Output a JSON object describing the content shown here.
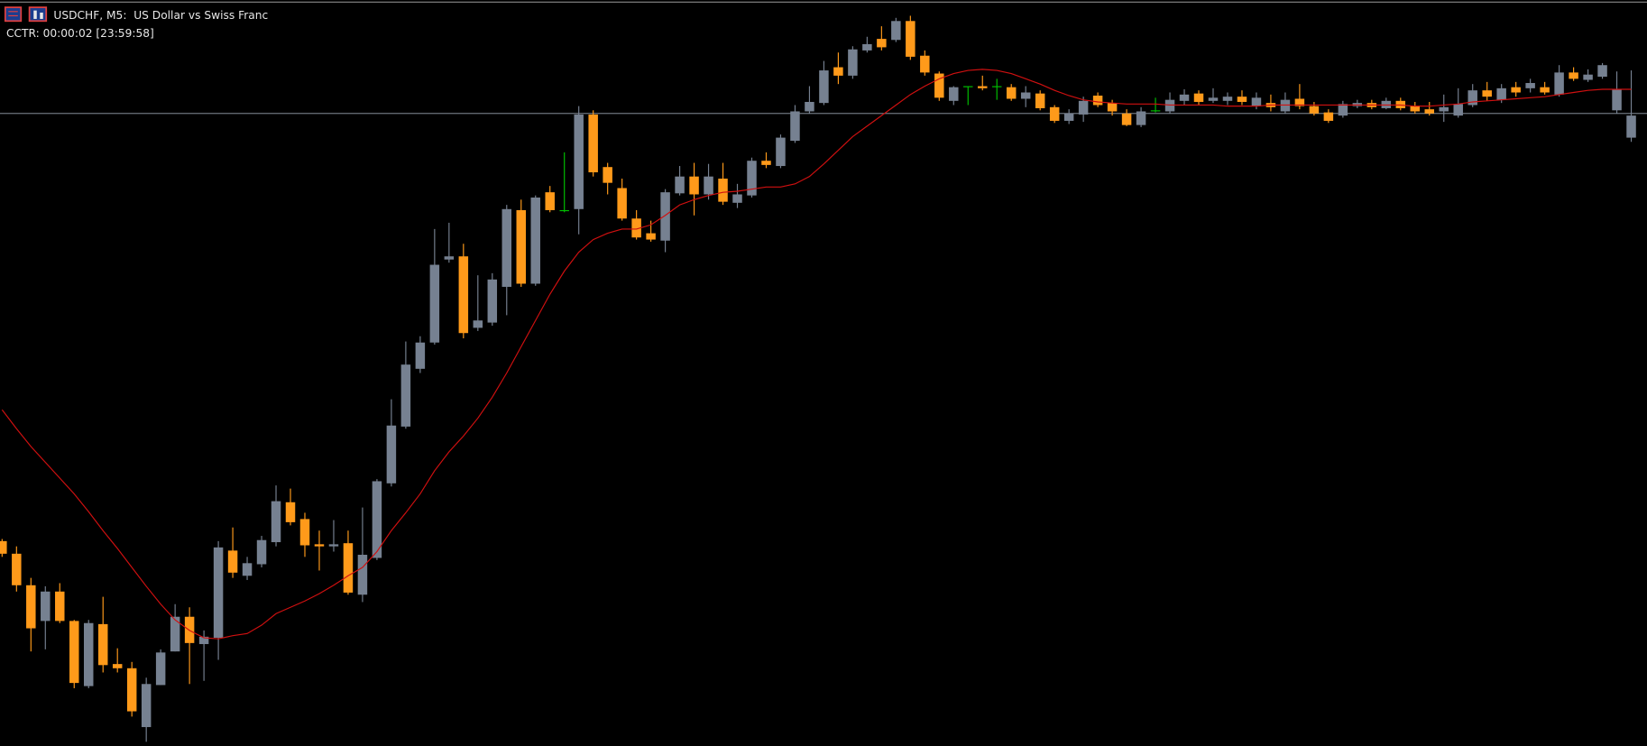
{
  "header": {
    "symbol": "USDCHF, M5:  US Dollar vs Swiss Franc",
    "indicator": "CCTR: 00:00:02 [23:59:58]"
  },
  "chart_data": {
    "type": "candlestick",
    "ylim": [
      0,
      710
    ],
    "up_color": "#768191",
    "down_color": "#ff9a1a",
    "doji_color": "#00c000",
    "ma_color": "#d01010",
    "price_line_color": "#9aa4b0",
    "price_line": 602,
    "open": [
      195,
      183,
      153,
      119,
      147,
      119,
      57,
      116,
      78,
      74,
      18,
      58,
      90,
      123,
      97,
      103,
      186,
      162,
      173,
      194,
      232,
      216,
      192,
      190,
      193,
      144,
      179,
      250,
      304,
      359,
      384,
      463,
      466,
      398,
      403,
      437,
      510,
      440,
      527,
      510,
      511,
      601,
      551,
      531,
      502,
      488,
      481,
      526,
      542,
      525,
      540,
      517,
      524,
      557,
      552,
      576,
      604,
      612,
      646,
      638,
      662,
      673,
      672,
      690,
      657,
      640,
      614,
      628,
      628,
      628,
      627,
      616,
      621,
      608,
      595,
      601,
      619,
      612,
      602,
      591,
      605,
      604,
      614,
      621,
      614,
      614,
      618,
      609,
      612,
      604,
      616,
      609,
      603,
      600,
      609,
      612,
      607,
      614,
      609,
      606,
      604,
      600,
      610,
      624,
      615,
      627,
      626,
      627,
      620,
      641,
      634,
      637,
      605,
      579
    ],
    "high": [
      197,
      190,
      160,
      152,
      155,
      120,
      120,
      142,
      93,
      80,
      65,
      92,
      135,
      132,
      110,
      195,
      208,
      180,
      200,
      248,
      245,
      222,
      205,
      215,
      205,
      227,
      254,
      330,
      385,
      390,
      492,
      498,
      478,
      448,
      450,
      515,
      520,
      524,
      533,
      565,
      609,
      605,
      555,
      540,
      510,
      500,
      530,
      552,
      555,
      554,
      555,
      535,
      560,
      565,
      582,
      610,
      628,
      652,
      660,
      666,
      675,
      685,
      693,
      695,
      662,
      642,
      628,
      628,
      638,
      635,
      630,
      628,
      624,
      610,
      606,
      618,
      622,
      615,
      606,
      608,
      617,
      622,
      625,
      624,
      626,
      622,
      624,
      622,
      620,
      622,
      630,
      613,
      606,
      614,
      615,
      615,
      617,
      617,
      613,
      613,
      620,
      626,
      630,
      632,
      630,
      632,
      635,
      632,
      648,
      646,
      644,
      650,
      642,
      643
    ],
    "low": [
      180,
      147,
      90,
      92,
      117,
      55,
      55,
      70,
      70,
      28,
      4,
      58,
      90,
      59,
      62,
      82,
      160,
      158,
      170,
      190,
      210,
      180,
      167,
      185,
      144,
      137,
      177,
      247,
      302,
      355,
      382,
      460,
      388,
      395,
      400,
      410,
      437,
      438,
      508,
      508,
      487,
      542,
      525,
      500,
      482,
      480,
      470,
      524,
      505,
      520,
      515,
      512,
      522,
      550,
      550,
      574,
      602,
      610,
      630,
      635,
      660,
      662,
      670,
      653,
      638,
      614,
      610,
      610,
      624,
      615,
      614,
      608,
      605,
      593,
      592,
      594,
      608,
      600,
      590,
      589,
      603,
      602,
      610,
      610,
      612,
      610,
      610,
      606,
      604,
      602,
      606,
      600,
      593,
      598,
      607,
      606,
      606,
      605,
      602,
      600,
      594,
      598,
      608,
      614,
      612,
      618,
      622,
      620,
      618,
      633,
      632,
      635,
      602,
      575
    ],
    "close": [
      183,
      153,
      112,
      147,
      119,
      60,
      117,
      77,
      74,
      33,
      59,
      89,
      123,
      98,
      104,
      189,
      165,
      174,
      196,
      233,
      213,
      191,
      190,
      192,
      146,
      182,
      252,
      305,
      363,
      384,
      458,
      466,
      393,
      405,
      444,
      511,
      440,
      522,
      510,
      510,
      601,
      546,
      536,
      502,
      484,
      482,
      527,
      542,
      525,
      542,
      518,
      525,
      557,
      553,
      579,
      604,
      613,
      643,
      638,
      663,
      668,
      665,
      690,
      656,
      641,
      617,
      627,
      628,
      626,
      628,
      616,
      622,
      607,
      595,
      602,
      614,
      610,
      604,
      591,
      604,
      605,
      615,
      620,
      613,
      617,
      618,
      613,
      617,
      608,
      615,
      609,
      602,
      595,
      611,
      612,
      608,
      614,
      607,
      604,
      602,
      608,
      611,
      624,
      618,
      626,
      622,
      631,
      622,
      641,
      635,
      639,
      648,
      625,
      600
    ],
    "ma": [
      320,
      302,
      285,
      270,
      255,
      240,
      223,
      205,
      188,
      170,
      152,
      135,
      120,
      110,
      103,
      102,
      105,
      107,
      115,
      126,
      132,
      138,
      145,
      153,
      162,
      170,
      185,
      205,
      222,
      240,
      262,
      280,
      295,
      312,
      332,
      355,
      380,
      405,
      430,
      452,
      470,
      482,
      488,
      492,
      492,
      496,
      505,
      515,
      520,
      524,
      527,
      528,
      530,
      532,
      532,
      535,
      542,
      554,
      567,
      580,
      590,
      600,
      610,
      620,
      628,
      635,
      640,
      643,
      644,
      643,
      640,
      635,
      630,
      624,
      619,
      615,
      613,
      612,
      611,
      611,
      611,
      610,
      610,
      610,
      610,
      609,
      609,
      609,
      610,
      610,
      610,
      610,
      610,
      610,
      610,
      610,
      610,
      610,
      609,
      609,
      610,
      611,
      613,
      614,
      615,
      616,
      617,
      618,
      620,
      622,
      624,
      625,
      625,
      625
    ]
  }
}
